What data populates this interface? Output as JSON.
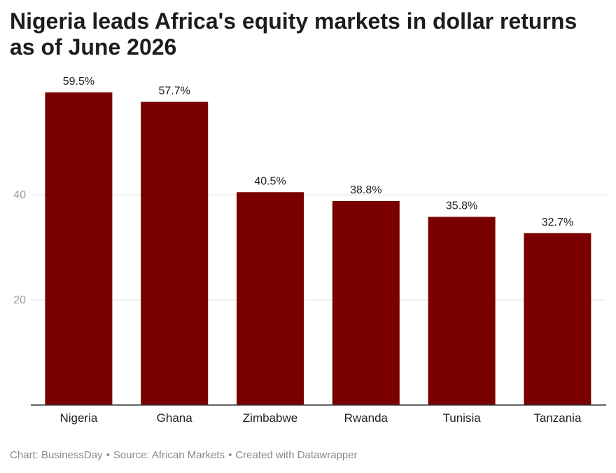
{
  "title": "Nigeria leads Africa's equity markets in dollar returns as of June 2026",
  "footer": {
    "chart_credit": "Chart: BusinessDay",
    "source": "Source: African Markets",
    "tool": "Created with Datawrapper",
    "separator": "•"
  },
  "colors": {
    "bar": "#7a0000",
    "grid": "#e3e3e3",
    "axis": "#333333",
    "tick_text": "#9a9a9a",
    "label_text": "#222222"
  },
  "chart_data": {
    "type": "bar",
    "title": "Nigeria leads Africa's equity markets in dollar returns as of June 2026",
    "categories": [
      "Nigeria",
      "Ghana",
      "Zimbabwe",
      "Rwanda",
      "Tunisia",
      "Tanzania"
    ],
    "values": [
      59.5,
      57.7,
      40.5,
      38.8,
      35.8,
      32.7
    ],
    "data_labels": [
      "59.5%",
      "57.7%",
      "40.5%",
      "38.8%",
      "35.8%",
      "32.7%"
    ],
    "y_ticks": [
      20,
      40
    ],
    "ylim": [
      0,
      60
    ],
    "xlabel": "",
    "ylabel": "",
    "grid": true,
    "legend": "none"
  }
}
